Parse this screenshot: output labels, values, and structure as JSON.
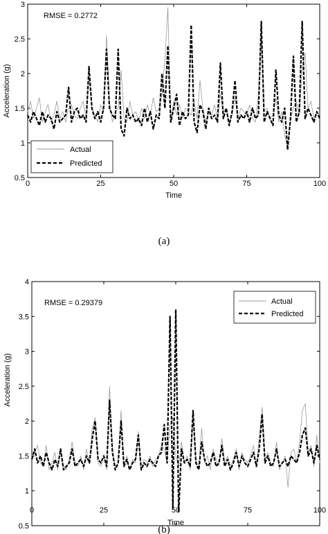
{
  "chart_data": [
    {
      "type": "line",
      "panel_label": "(a)",
      "xlabel": "Time",
      "ylabel": "Acceleration (g)",
      "xlim": [
        0,
        100
      ],
      "ylim": [
        0.5,
        3
      ],
      "xticks": [
        "0",
        "25",
        "50",
        "75",
        "100"
      ],
      "yticks": [
        "0.5",
        "1",
        "1.5",
        "2",
        "2.5",
        "3"
      ],
      "annotation": "RMSE = 0.2772",
      "legend_position": "bottom-left",
      "grid": false,
      "series": [
        {
          "name": "Actual",
          "style": "thin-solid",
          "color": "#999999",
          "x": [
            0,
            1,
            2,
            3,
            4,
            5,
            6,
            7,
            8,
            9,
            10,
            11,
            12,
            13,
            14,
            15,
            16,
            17,
            18,
            19,
            20,
            21,
            22,
            23,
            24,
            25,
            26,
            27,
            28,
            29,
            30,
            31,
            32,
            33,
            34,
            35,
            36,
            37,
            38,
            39,
            40,
            41,
            42,
            43,
            44,
            45,
            46,
            47,
            48,
            49,
            50,
            51,
            52,
            53,
            54,
            55,
            56,
            57,
            58,
            59,
            60,
            61,
            62,
            63,
            64,
            65,
            66,
            67,
            68,
            69,
            70,
            71,
            72,
            73,
            74,
            75,
            76,
            77,
            78,
            79,
            80,
            81,
            82,
            83,
            84,
            85,
            86,
            87,
            88,
            89,
            90,
            91,
            92,
            93,
            94,
            95,
            96,
            97,
            98,
            99,
            100
          ],
          "y": [
            1.45,
            1.6,
            1.35,
            1.5,
            1.65,
            1.3,
            1.45,
            1.55,
            1.3,
            1.4,
            1.6,
            1.35,
            1.45,
            1.3,
            1.5,
            1.55,
            1.4,
            1.35,
            1.5,
            1.6,
            1.35,
            1.95,
            1.5,
            1.4,
            1.3,
            1.55,
            1.45,
            2.55,
            1.6,
            1.3,
            1.45,
            1.5,
            2.05,
            1.35,
            1.3,
            1.6,
            1.4,
            1.45,
            1.3,
            1.5,
            1.35,
            1.55,
            1.4,
            1.65,
            1.45,
            1.5,
            1.7,
            2.2,
            2.95,
            1.3,
            1.6,
            1.4,
            1.55,
            1.35,
            1.5,
            1.45,
            1.4,
            1.6,
            1.35,
            1.9,
            1.5,
            1.3,
            1.45,
            1.4,
            1.55,
            1.35,
            1.7,
            1.45,
            1.5,
            1.3,
            1.4,
            1.65,
            1.35,
            1.5,
            1.45,
            1.4,
            1.55,
            1.35,
            1.3,
            1.7,
            2.6,
            1.45,
            1.5,
            1.35,
            1.4,
            1.65,
            1.3,
            1.45,
            1.1,
            0.95,
            1.35,
            1.5,
            1.6,
            1.4,
            2.05,
            2.3,
            1.5,
            1.6,
            1.35,
            1.45,
            1.4
          ]
        },
        {
          "name": "Predicted",
          "style": "thick-dashed",
          "color": "#000000",
          "x": [
            0,
            1,
            2,
            3,
            4,
            5,
            6,
            7,
            8,
            9,
            10,
            11,
            12,
            13,
            14,
            15,
            16,
            17,
            18,
            19,
            20,
            21,
            22,
            23,
            24,
            25,
            26,
            27,
            28,
            29,
            30,
            31,
            32,
            33,
            34,
            35,
            36,
            37,
            38,
            39,
            40,
            41,
            42,
            43,
            44,
            45,
            46,
            47,
            48,
            49,
            50,
            51,
            52,
            53,
            54,
            55,
            56,
            57,
            58,
            59,
            60,
            61,
            62,
            63,
            64,
            65,
            66,
            67,
            68,
            69,
            70,
            71,
            72,
            73,
            74,
            75,
            76,
            77,
            78,
            79,
            80,
            81,
            82,
            83,
            84,
            85,
            86,
            87,
            88,
            89,
            90,
            91,
            92,
            93,
            94,
            95,
            96,
            97,
            98,
            99,
            100
          ],
          "y": [
            1.4,
            1.3,
            1.45,
            1.35,
            1.25,
            1.45,
            1.3,
            1.4,
            1.35,
            1.2,
            1.45,
            1.3,
            1.35,
            1.4,
            1.8,
            1.3,
            1.45,
            1.5,
            1.35,
            1.4,
            1.3,
            2.1,
            1.5,
            1.35,
            1.45,
            1.3,
            1.5,
            2.35,
            1.5,
            1.4,
            1.35,
            2.35,
            1.2,
            1.1,
            1.5,
            1.35,
            1.4,
            1.3,
            1.35,
            1.25,
            1.5,
            1.3,
            1.45,
            1.2,
            1.4,
            1.35,
            2.0,
            1.5,
            2.4,
            1.3,
            1.5,
            1.7,
            1.25,
            1.45,
            1.35,
            1.4,
            2.7,
            1.3,
            1.15,
            1.55,
            1.45,
            1.2,
            1.5,
            1.35,
            1.4,
            1.3,
            2.15,
            1.35,
            1.5,
            1.25,
            1.45,
            1.9,
            1.3,
            1.4,
            1.35,
            1.45,
            1.3,
            1.5,
            1.35,
            1.4,
            2.75,
            1.3,
            1.45,
            1.35,
            1.25,
            2.05,
            1.4,
            1.3,
            1.5,
            0.9,
            1.35,
            2.25,
            1.3,
            1.45,
            2.75,
            1.35,
            1.5,
            1.4,
            1.3,
            1.45,
            1.35
          ]
        }
      ]
    },
    {
      "type": "line",
      "panel_label": "(b)",
      "xlabel": "Time",
      "ylabel": "Acceleration (g)",
      "xlim": [
        0,
        100
      ],
      "ylim": [
        0.5,
        4
      ],
      "xticks": [
        "0",
        "25",
        "50",
        "75",
        "100"
      ],
      "yticks": [
        "0.5",
        "1",
        "1.5",
        "2",
        "2.5",
        "3",
        "3.5",
        "4"
      ],
      "annotation": "RMSE = 0.29379",
      "legend_position": "top-right",
      "grid": false,
      "series": [
        {
          "name": "Actual",
          "style": "thin-solid",
          "color": "#999999",
          "x": [
            0,
            1,
            2,
            3,
            4,
            5,
            6,
            7,
            8,
            9,
            10,
            11,
            12,
            13,
            14,
            15,
            16,
            17,
            18,
            19,
            20,
            21,
            22,
            23,
            24,
            25,
            26,
            27,
            28,
            29,
            30,
            31,
            32,
            33,
            34,
            35,
            36,
            37,
            38,
            39,
            40,
            41,
            42,
            43,
            44,
            45,
            46,
            47,
            48,
            49,
            50,
            51,
            52,
            53,
            54,
            55,
            56,
            57,
            58,
            59,
            60,
            61,
            62,
            63,
            64,
            65,
            66,
            67,
            68,
            69,
            70,
            71,
            72,
            73,
            74,
            75,
            76,
            77,
            78,
            79,
            80,
            81,
            82,
            83,
            84,
            85,
            86,
            87,
            88,
            89,
            90,
            91,
            92,
            93,
            94,
            95,
            96,
            97,
            98,
            99,
            100
          ],
          "y": [
            1.5,
            1.55,
            1.65,
            1.4,
            1.35,
            1.65,
            1.3,
            1.4,
            1.55,
            1.3,
            1.6,
            1.35,
            1.3,
            1.45,
            1.7,
            1.4,
            1.35,
            1.5,
            1.3,
            1.6,
            1.4,
            1.9,
            2.05,
            1.4,
            1.35,
            1.5,
            1.3,
            2.5,
            1.6,
            1.35,
            1.4,
            2.15,
            1.35,
            1.5,
            1.3,
            1.45,
            1.4,
            1.85,
            1.3,
            1.45,
            1.4,
            1.5,
            1.35,
            1.45,
            1.5,
            1.65,
            1.6,
            1.4,
            1.95,
            2.05,
            1.5,
            1.35,
            1.7,
            1.4,
            1.5,
            1.3,
            2.1,
            1.45,
            1.35,
            1.9,
            1.4,
            1.5,
            1.3,
            1.6,
            1.45,
            1.35,
            1.75,
            1.4,
            1.5,
            1.35,
            1.45,
            1.6,
            1.3,
            1.55,
            1.45,
            1.4,
            1.5,
            1.65,
            1.35,
            1.75,
            2.2,
            1.45,
            1.55,
            1.4,
            1.35,
            1.7,
            1.3,
            1.4,
            1.5,
            1.05,
            1.55,
            1.6,
            1.4,
            1.7,
            2.15,
            2.25,
            1.55,
            1.65,
            1.35,
            1.8,
            1.4
          ]
        },
        {
          "name": "Predicted",
          "style": "thick-dashed",
          "color": "#000000",
          "x": [
            0,
            1,
            2,
            3,
            4,
            5,
            6,
            7,
            8,
            9,
            10,
            11,
            12,
            13,
            14,
            15,
            16,
            17,
            18,
            19,
            20,
            21,
            22,
            23,
            24,
            25,
            26,
            27,
            28,
            29,
            30,
            31,
            32,
            33,
            34,
            35,
            36,
            37,
            38,
            39,
            40,
            41,
            42,
            43,
            44,
            45,
            46,
            47,
            48,
            49,
            50,
            51,
            52,
            53,
            54,
            55,
            56,
            57,
            58,
            59,
            60,
            61,
            62,
            63,
            64,
            65,
            66,
            67,
            68,
            69,
            70,
            71,
            72,
            73,
            74,
            75,
            76,
            77,
            78,
            79,
            80,
            81,
            82,
            83,
            84,
            85,
            86,
            87,
            88,
            89,
            90,
            91,
            92,
            93,
            94,
            95,
            96,
            97,
            98,
            99,
            100
          ],
          "y": [
            1.45,
            1.6,
            1.4,
            1.5,
            1.35,
            1.55,
            1.4,
            1.3,
            1.45,
            1.35,
            1.6,
            1.3,
            1.35,
            1.4,
            1.6,
            1.35,
            1.4,
            1.45,
            1.35,
            1.5,
            1.4,
            1.75,
            2.0,
            1.45,
            1.4,
            1.5,
            1.35,
            2.3,
            1.55,
            1.3,
            1.4,
            2.0,
            1.35,
            1.45,
            1.3,
            1.4,
            1.45,
            1.8,
            1.3,
            1.4,
            1.35,
            1.45,
            1.4,
            1.35,
            1.5,
            1.55,
            1.95,
            1.4,
            3.5,
            0.75,
            3.6,
            0.7,
            1.6,
            1.4,
            1.45,
            1.35,
            2.15,
            1.4,
            1.3,
            1.7,
            1.45,
            1.35,
            1.4,
            1.55,
            1.35,
            1.4,
            1.65,
            1.35,
            1.45,
            1.3,
            1.4,
            1.55,
            1.35,
            1.5,
            1.4,
            1.35,
            1.45,
            1.55,
            1.35,
            1.6,
            2.1,
            1.4,
            1.5,
            1.35,
            1.4,
            1.6,
            1.35,
            1.4,
            1.45,
            1.35,
            1.5,
            1.45,
            1.4,
            1.55,
            1.8,
            1.9,
            1.5,
            1.6,
            1.4,
            1.65,
            1.45
          ]
        }
      ]
    }
  ]
}
